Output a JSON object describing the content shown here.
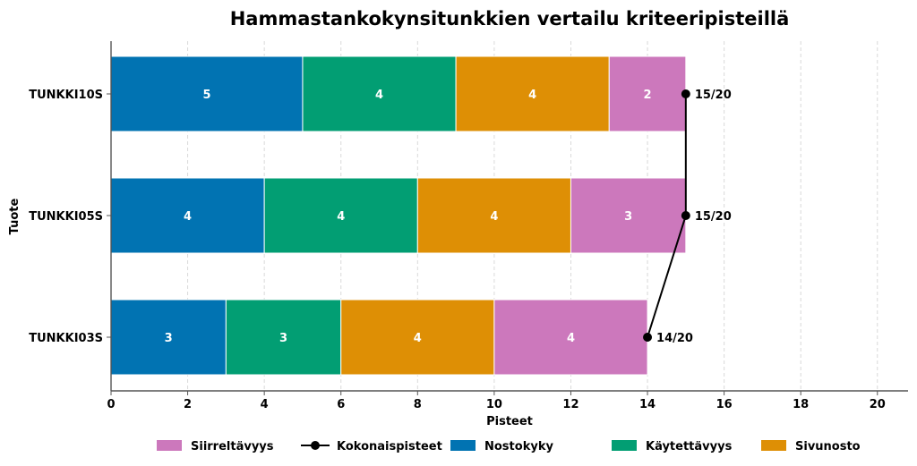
{
  "chart_data": {
    "type": "bar",
    "orientation": "horizontal",
    "stacked": true,
    "title": "Hammastankokynsitunkkien vertailu kriteeripisteillä",
    "xlabel": "Pisteet",
    "ylabel": "Tuote",
    "xlim": [
      0,
      20.8
    ],
    "xticks": [
      0,
      2,
      4,
      6,
      8,
      10,
      12,
      14,
      16,
      18,
      20
    ],
    "grid": "vertical-dashed",
    "categories": [
      "TUNKKI03S",
      "TUNKKI05S",
      "TUNKKI10S"
    ],
    "series": [
      {
        "name": "Nostokyky",
        "color": "#0173b2",
        "values": [
          3,
          4,
          5
        ]
      },
      {
        "name": "Käytettävyys",
        "color": "#029e73",
        "values": [
          3,
          4,
          4
        ]
      },
      {
        "name": "Sivunosto",
        "color": "#de8f05",
        "values": [
          4,
          4,
          4
        ]
      },
      {
        "name": "Siirreltävyys",
        "color": "#cc78bc",
        "values": [
          4,
          3,
          2
        ]
      }
    ],
    "totals": {
      "name": "Kokonaispisteet",
      "color": "#000000",
      "values": [
        14,
        15,
        15
      ],
      "labels": [
        "14/20",
        "15/20",
        "15/20"
      ]
    },
    "legend": {
      "placement": "bottom",
      "order": [
        "Siirreltävyys",
        "Kokonaispisteet",
        "Nostokyky",
        "Käytettävyys",
        "Sivunosto"
      ]
    }
  }
}
